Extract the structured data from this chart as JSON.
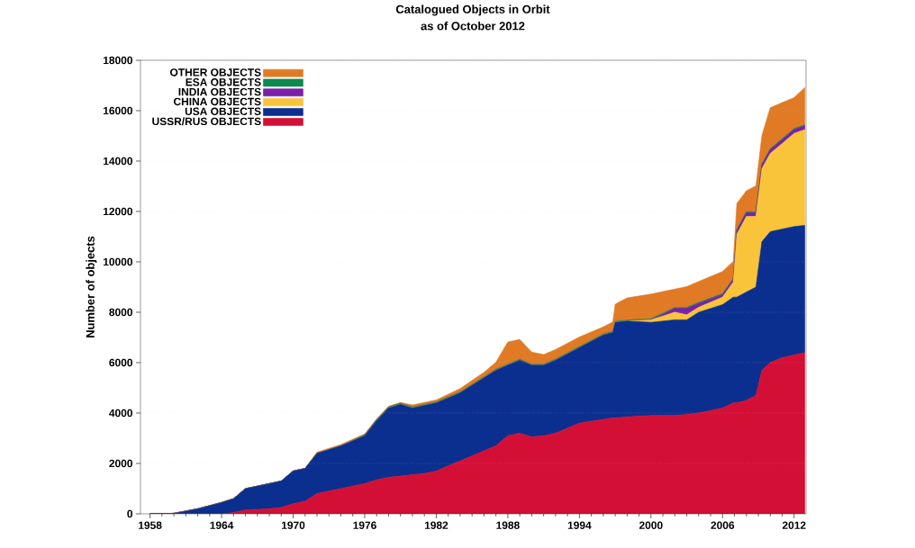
{
  "chart_data": {
    "type": "area",
    "stacked": true,
    "title": "Catalogued Objects in Orbit",
    "subtitle": "as of October 2012",
    "ylabel": "Number of objects",
    "x": [
      1958,
      1960,
      1962,
      1964,
      1965,
      1966,
      1968,
      1969,
      1970,
      1971,
      1972,
      1974,
      1976,
      1977,
      1978,
      1979,
      1980,
      1981,
      1982,
      1984,
      1986,
      1987,
      1988,
      1989,
      1990,
      1991,
      1992,
      1994,
      1996,
      1996.8,
      1997,
      1998,
      2000,
      2002,
      2003,
      2004,
      2006,
      2006.9,
      2007.2,
      2008,
      2008.8,
      2009.3,
      2010,
      2011,
      2012,
      2012.9
    ],
    "series": [
      {
        "name": "USSR/RUS OBJECTS",
        "color": "#d40f35",
        "values": [
          0,
          0,
          0,
          0,
          50,
          150,
          200,
          250,
          400,
          500,
          800,
          1000,
          1200,
          1350,
          1450,
          1500,
          1550,
          1600,
          1700,
          2100,
          2500,
          2700,
          3100,
          3200,
          3050,
          3100,
          3200,
          3600,
          3750,
          3800,
          3800,
          3850,
          3900,
          3900,
          3950,
          4000,
          4200,
          4400,
          4400,
          4500,
          4700,
          5700,
          6000,
          6200,
          6300,
          6400
        ]
      },
      {
        "name": "USA OBJECTS",
        "color": "#0b2f8e",
        "values": [
          0,
          20,
          200,
          450,
          550,
          850,
          1000,
          1050,
          1300,
          1300,
          1600,
          1700,
          1900,
          2350,
          2750,
          2850,
          2650,
          2700,
          2700,
          2700,
          2900,
          3000,
          2800,
          2900,
          2850,
          2800,
          2900,
          3000,
          3350,
          3400,
          3800,
          3800,
          3700,
          3800,
          3750,
          4000,
          4100,
          4200,
          4200,
          4300,
          4300,
          5100,
          5200,
          5100,
          5100,
          5050
        ]
      },
      {
        "name": "CHINA OBJECTS",
        "color": "#f9c43a",
        "values": [
          0,
          0,
          0,
          0,
          0,
          0,
          0,
          0,
          0,
          0,
          0,
          0,
          0,
          0,
          0,
          0,
          0,
          0,
          0,
          0,
          0,
          0,
          0,
          0,
          0,
          0,
          0,
          0,
          0,
          0,
          0,
          0,
          100,
          300,
          200,
          200,
          300,
          600,
          2500,
          3000,
          2800,
          2900,
          3100,
          3400,
          3700,
          3800
        ]
      },
      {
        "name": "INDIA OBJECTS",
        "color": "#7b1fa8",
        "values": [
          0,
          0,
          0,
          0,
          0,
          0,
          0,
          0,
          0,
          0,
          0,
          0,
          0,
          0,
          0,
          0,
          0,
          0,
          0,
          0,
          0,
          0,
          0,
          0,
          0,
          0,
          0,
          0,
          0,
          0,
          0,
          0,
          0,
          150,
          250,
          150,
          100,
          100,
          150,
          150,
          150,
          150,
          150,
          150,
          150,
          150
        ]
      },
      {
        "name": "ESA OBJECTS",
        "color": "#0f8a4f",
        "values": [
          0,
          0,
          0,
          0,
          0,
          0,
          0,
          0,
          0,
          0,
          0,
          0,
          40,
          40,
          40,
          40,
          40,
          40,
          40,
          40,
          40,
          40,
          40,
          40,
          40,
          40,
          40,
          40,
          40,
          40,
          40,
          40,
          40,
          40,
          40,
          40,
          40,
          40,
          40,
          40,
          40,
          40,
          40,
          40,
          40,
          40
        ]
      },
      {
        "name": "OTHER OBJECTS",
        "color": "#e07a24",
        "values": [
          0,
          0,
          0,
          0,
          0,
          0,
          0,
          0,
          0,
          0,
          50,
          50,
          30,
          30,
          30,
          30,
          80,
          80,
          80,
          130,
          180,
          280,
          880,
          780,
          480,
          380,
          380,
          380,
          280,
          380,
          680,
          880,
          980,
          730,
          830,
          830,
          880,
          680,
          1030,
          830,
          1030,
          1130,
          1630,
          1430,
          1230,
          1480
        ]
      }
    ],
    "xlim": [
      1957.2,
      2013
    ],
    "xticks": [
      1958,
      1964,
      1970,
      1976,
      1982,
      1988,
      1994,
      2000,
      2006,
      2012
    ],
    "ylim": [
      0,
      18000
    ],
    "yticks": [
      0,
      2000,
      4000,
      6000,
      8000,
      10000,
      12000,
      14000,
      16000,
      18000
    ],
    "grid": "y",
    "legend": "top left"
  }
}
